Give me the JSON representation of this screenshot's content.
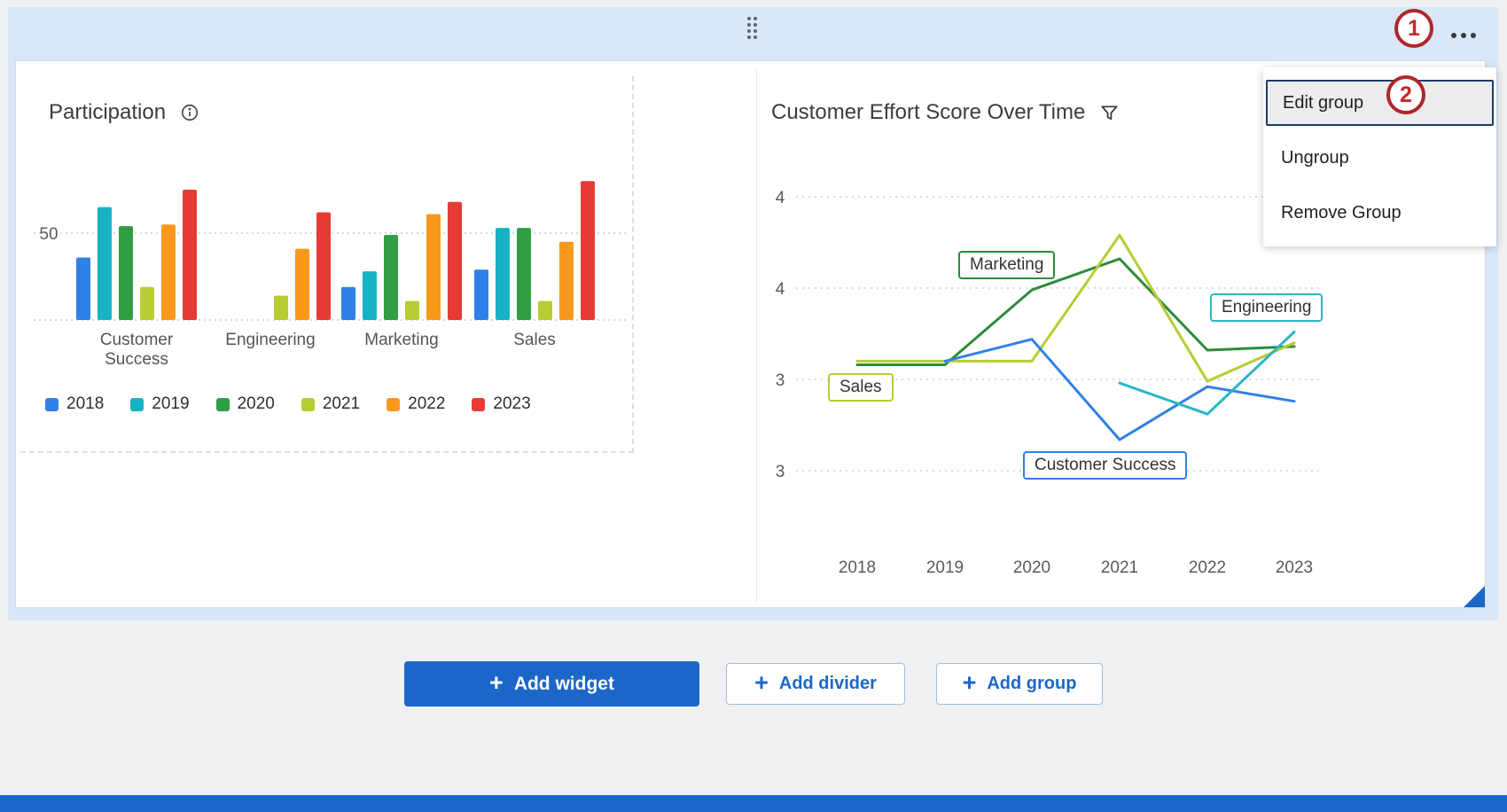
{
  "colors": {
    "accent_blue": "#1b67c9",
    "group_background": "#d9e7f8",
    "annotation_red": "#c62828",
    "panel_background": "#ffffff"
  },
  "icons": {
    "drag": "drag-handle-icon",
    "menu": "ellipsis-icon",
    "info": "info-icon",
    "filter": "filter-funnel-icon",
    "plus": "plus-icon",
    "resize": "resize-corner-icon"
  },
  "group": {
    "menu": {
      "items": [
        {
          "label": "Edit group",
          "highlighted": true
        },
        {
          "label": "Ungroup",
          "highlighted": false
        },
        {
          "label": "Remove Group",
          "highlighted": false
        }
      ]
    },
    "annotations": {
      "step1": "1",
      "step2": "2"
    }
  },
  "actions": {
    "add_widget": "Add widget",
    "add_divider": "Add divider",
    "add_group": "Add group"
  },
  "chart_data": [
    {
      "type": "bar",
      "title": "Participation",
      "categories": [
        "Customer Success",
        "Engineering",
        "Marketing",
        "Sales"
      ],
      "series": [
        {
          "name": "2018",
          "color": "#2f80e8",
          "values": [
            36,
            null,
            19,
            29
          ]
        },
        {
          "name": "2019",
          "color": "#17b3c4",
          "values": [
            65,
            null,
            28,
            53
          ]
        },
        {
          "name": "2020",
          "color": "#2f9e44",
          "values": [
            54,
            null,
            49,
            53
          ]
        },
        {
          "name": "2021",
          "color": "#b8cc33",
          "values": [
            19,
            14,
            11,
            11
          ]
        },
        {
          "name": "2022",
          "color": "#f8981d",
          "values": [
            55,
            41,
            61,
            45
          ]
        },
        {
          "name": "2023",
          "color": "#e63b35",
          "values": [
            75,
            62,
            68,
            80
          ]
        }
      ],
      "ytick": 50,
      "ylim": [
        0,
        82
      ],
      "grid": "dotted-horizontal",
      "legend_position": "bottom"
    },
    {
      "type": "line",
      "title": "Customer Effort Score Over Time",
      "x": [
        "2018",
        "2019",
        "2020",
        "2021",
        "2022",
        "2023"
      ],
      "ytick_labels_top_to_bottom": [
        "4",
        "4",
        "3",
        "3"
      ],
      "ytick_values": [
        4.0,
        3.5,
        3.0,
        2.5
      ],
      "ylim": [
        2.4,
        4.1
      ],
      "grid": "dotted-horizontal",
      "legend": "inline-labels",
      "series": [
        {
          "name": "Marketing",
          "color": "#2e8b3a",
          "values": [
            3.08,
            3.08,
            3.49,
            3.66,
            3.16,
            3.18
          ]
        },
        {
          "name": "Sales",
          "color": "#b8cc33",
          "values": [
            3.1,
            3.1,
            3.1,
            3.79,
            2.99,
            3.2
          ]
        },
        {
          "name": "Customer Success",
          "color": "#2f80e8",
          "values": [
            null,
            3.1,
            3.22,
            2.67,
            2.96,
            2.88
          ]
        },
        {
          "name": "Engineering",
          "color": "#29b6c8",
          "values": [
            null,
            null,
            null,
            2.98,
            2.81,
            3.26
          ]
        }
      ]
    }
  ]
}
